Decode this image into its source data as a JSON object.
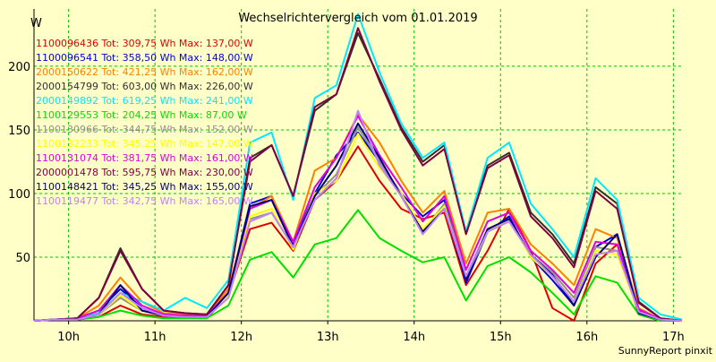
{
  "chart_data": {
    "type": "line",
    "title": "Wechselrichtervergleich vom 01.01.2019",
    "ylabel": "W",
    "xlabel": "",
    "ylim": [
      0,
      245
    ],
    "xlim": [
      9.6,
      17.1
    ],
    "y_ticks": [
      50,
      100,
      150,
      200
    ],
    "x_ticks": [
      {
        "value": 10,
        "label": "10h"
      },
      {
        "value": 11,
        "label": "11h"
      },
      {
        "value": 12,
        "label": "12h"
      },
      {
        "value": 13,
        "label": "13h"
      },
      {
        "value": 14,
        "label": "14h"
      },
      {
        "value": 15,
        "label": "15h"
      },
      {
        "value": 16,
        "label": "16h"
      },
      {
        "value": 17,
        "label": "17h"
      }
    ],
    "grid": true,
    "legend_position": "top-left",
    "footer": "SunnyReport pinxit",
    "x": [
      9.6,
      9.83,
      10.1,
      10.35,
      10.6,
      10.85,
      11.1,
      11.35,
      11.6,
      11.85,
      12.1,
      12.35,
      12.6,
      12.85,
      13.1,
      13.35,
      13.6,
      13.85,
      14.1,
      14.35,
      14.6,
      14.85,
      15.1,
      15.35,
      15.6,
      15.85,
      16.1,
      16.35,
      16.6,
      16.85,
      17.1
    ],
    "series": [
      {
        "name": "1100096436",
        "legend": "1100096436 Tot: 309,75 Wh Max: 137,00 W",
        "color": "#e00000",
        "values": [
          0,
          1,
          1,
          3,
          12,
          5,
          3,
          3,
          2,
          20,
          72,
          77,
          55,
          95,
          110,
          137,
          110,
          88,
          80,
          85,
          28,
          55,
          88,
          55,
          10,
          0,
          45,
          60,
          5,
          0,
          0
        ]
      },
      {
        "name": "1100096541",
        "legend": "1100096541 Tot: 358,50 Wh Max: 148,00 W",
        "color": "#0000e0",
        "values": [
          0,
          1,
          2,
          8,
          25,
          10,
          4,
          4,
          3,
          22,
          92,
          98,
          60,
          100,
          130,
          148,
          125,
          100,
          82,
          95,
          30,
          70,
          82,
          50,
          32,
          12,
          58,
          68,
          8,
          1,
          0
        ]
      },
      {
        "name": "2000150622",
        "legend": "2000150622 Tot: 421,25 Wh Max: 162,00 W",
        "color": "#ff8000",
        "values": [
          0,
          1,
          2,
          12,
          34,
          15,
          6,
          5,
          4,
          25,
          88,
          98,
          62,
          118,
          128,
          162,
          140,
          110,
          85,
          102,
          45,
          85,
          88,
          60,
          45,
          28,
          72,
          65,
          10,
          1,
          0
        ]
      },
      {
        "name": "2000154799",
        "legend": "2000154799 Tot: 603,00 Wh Max: 226,00 W",
        "color": "#303030",
        "values": [
          0,
          1,
          2,
          18,
          57,
          25,
          8,
          6,
          5,
          28,
          128,
          138,
          98,
          165,
          178,
          226,
          190,
          152,
          125,
          138,
          70,
          122,
          132,
          85,
          68,
          45,
          105,
          92,
          15,
          2,
          0
        ]
      },
      {
        "name": "2000149892",
        "legend": "2000149892 Tot: 619,25 Wh Max: 241,00 W",
        "color": "#00e8ff",
        "values": [
          0,
          1,
          2,
          6,
          22,
          15,
          8,
          18,
          10,
          32,
          140,
          148,
          95,
          175,
          185,
          241,
          195,
          155,
          128,
          140,
          70,
          128,
          140,
          92,
          72,
          50,
          112,
          95,
          18,
          5,
          1
        ]
      },
      {
        "name": "1100129553",
        "legend": "1100129553 Tot: 204,25 Wh Max: 87,00 W",
        "color": "#00e000",
        "values": [
          0,
          1,
          1,
          3,
          8,
          4,
          2,
          2,
          2,
          12,
          48,
          54,
          34,
          60,
          65,
          87,
          65,
          55,
          46,
          50,
          16,
          43,
          50,
          38,
          22,
          5,
          35,
          30,
          5,
          0,
          0
        ]
      },
      {
        "name": "1100130966",
        "legend": "1100130966 Tot: 344,75 Wh Max: 152,00 W",
        "color": "#909090",
        "values": [
          0,
          1,
          1,
          5,
          18,
          8,
          4,
          3,
          3,
          20,
          80,
          85,
          58,
          98,
          115,
          152,
          125,
          100,
          70,
          92,
          35,
          72,
          78,
          52,
          38,
          18,
          58,
          55,
          7,
          1,
          0
        ]
      },
      {
        "name": "1100132233",
        "legend": "1100132233 Tot: 345,25 Wh Max: 147,00 W",
        "color": "#ffff00",
        "values": [
          0,
          1,
          1,
          5,
          20,
          8,
          4,
          3,
          3,
          20,
          82,
          88,
          56,
          100,
          110,
          147,
          120,
          100,
          72,
          90,
          33,
          70,
          80,
          50,
          35,
          15,
          55,
          52,
          7,
          1,
          0
        ]
      },
      {
        "name": "1100131074",
        "legend": "1100131074 Tot: 381,75 Wh Max: 161,00 W",
        "color": "#e000e0",
        "values": [
          0,
          1,
          2,
          8,
          28,
          12,
          5,
          4,
          4,
          22,
          88,
          95,
          62,
          105,
          128,
          161,
          130,
          105,
          78,
          98,
          40,
          78,
          85,
          55,
          40,
          22,
          62,
          60,
          9,
          1,
          0
        ]
      },
      {
        "name": "2000001478",
        "legend": "2000001478 Tot: 595,75 Wh Max: 230,00 W",
        "color": "#800040",
        "values": [
          0,
          1,
          2,
          18,
          55,
          25,
          8,
          6,
          5,
          28,
          125,
          138,
          98,
          168,
          178,
          230,
          188,
          150,
          122,
          135,
          68,
          120,
          130,
          82,
          65,
          42,
          102,
          88,
          14,
          2,
          0
        ]
      },
      {
        "name": "1100148421",
        "legend": "1100148421 Tot: 345,25 Wh Max: 155,00 W",
        "color": "#000080",
        "values": [
          0,
          1,
          1,
          5,
          28,
          8,
          4,
          3,
          3,
          22,
          90,
          95,
          58,
          98,
          122,
          155,
          128,
          98,
          70,
          88,
          32,
          72,
          80,
          52,
          36,
          12,
          50,
          68,
          6,
          1,
          0
        ]
      },
      {
        "name": "1100119477",
        "legend": "1100119477 Tot: 342,75 Wh Max: 165,00 W",
        "color": "#c080ff",
        "values": [
          0,
          1,
          1,
          5,
          22,
          10,
          4,
          3,
          3,
          18,
          78,
          85,
          58,
          95,
          112,
          165,
          122,
          98,
          68,
          88,
          35,
          70,
          78,
          52,
          35,
          15,
          52,
          55,
          7,
          1,
          0
        ]
      }
    ]
  }
}
